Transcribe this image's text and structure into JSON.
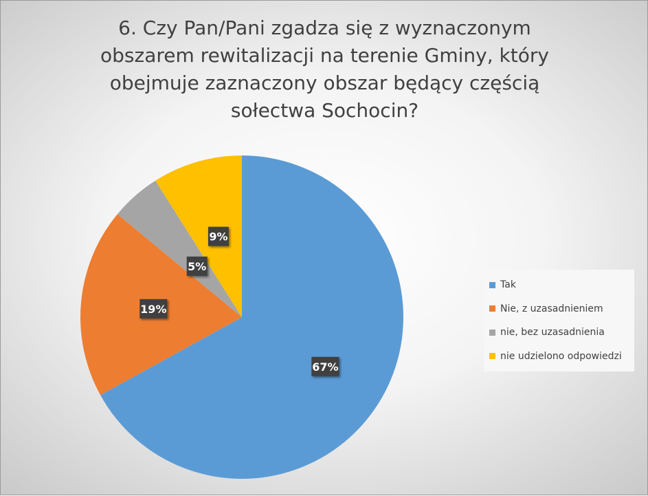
{
  "chart_data": {
    "type": "pie",
    "title": "6. Czy Pan/Pani zgadza się z wyznaczonym obszarem rewitalizacji  na terenie Gminy, który obejmuje zaznaczony obszar będący częścią sołectwa Sochocin?",
    "title_lines": [
      "6. Czy Pan/Pani zgadza się z wyznaczonym",
      "obszarem rewitalizacji  na terenie Gminy, który",
      "obejmuje zaznaczony obszar będący częścią",
      "sołectwa Sochocin?"
    ],
    "categories": [
      "Tak",
      "Nie, z uzasadnieniem",
      "nie, bez uzasadnienia",
      "nie udzielono odpowiedzi"
    ],
    "values": [
      67,
      19,
      5,
      9
    ],
    "data_labels": [
      "67%",
      "19%",
      "5%",
      "9%"
    ],
    "colors": [
      "#5b9bd5",
      "#ed7d31",
      "#a5a5a5",
      "#ffc000"
    ],
    "start_angle_deg": 0,
    "direction": "clockwise",
    "legend_position": "right"
  }
}
